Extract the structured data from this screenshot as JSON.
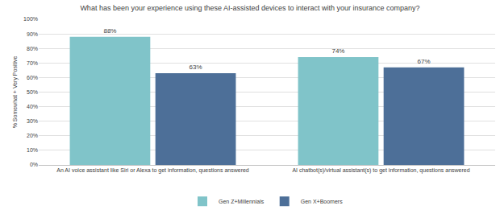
{
  "chart_data": {
    "type": "bar",
    "title": "What has been your experience using these AI-assisted devices to interact with your insurance company?",
    "y_label": "% Somewhat + Very Positive",
    "categories": [
      "An AI voice assistant like Siri or Alexa to get information, questions answered",
      "AI chatbot(s)/virtual assistant(s) to get information, questions answered"
    ],
    "series": [
      {
        "name": "Gen Z+Millennials",
        "color": "#80c4c9",
        "values": [
          88,
          74
        ],
        "value_labels": [
          "88%",
          "74%"
        ]
      },
      {
        "name": "Gen X+Boomers",
        "color": "#4d6f98",
        "values": [
          63,
          67
        ],
        "value_labels": [
          "63%",
          "67%"
        ]
      }
    ],
    "ylim": [
      0,
      100
    ],
    "yticks": [
      {
        "value": 0,
        "label": "0%"
      },
      {
        "value": 10,
        "label": "10%"
      },
      {
        "value": 20,
        "label": "20%"
      },
      {
        "value": 30,
        "label": "30%"
      },
      {
        "value": 40,
        "label": "40%"
      },
      {
        "value": 50,
        "label": "50%"
      },
      {
        "value": 60,
        "label": "60%"
      },
      {
        "value": 70,
        "label": "70%"
      },
      {
        "value": 80,
        "label": "80%"
      },
      {
        "value": 90,
        "label": "90%"
      },
      {
        "value": 100,
        "label": "100%"
      }
    ],
    "grid": true,
    "legend": "bottom",
    "data_labels": true
  }
}
